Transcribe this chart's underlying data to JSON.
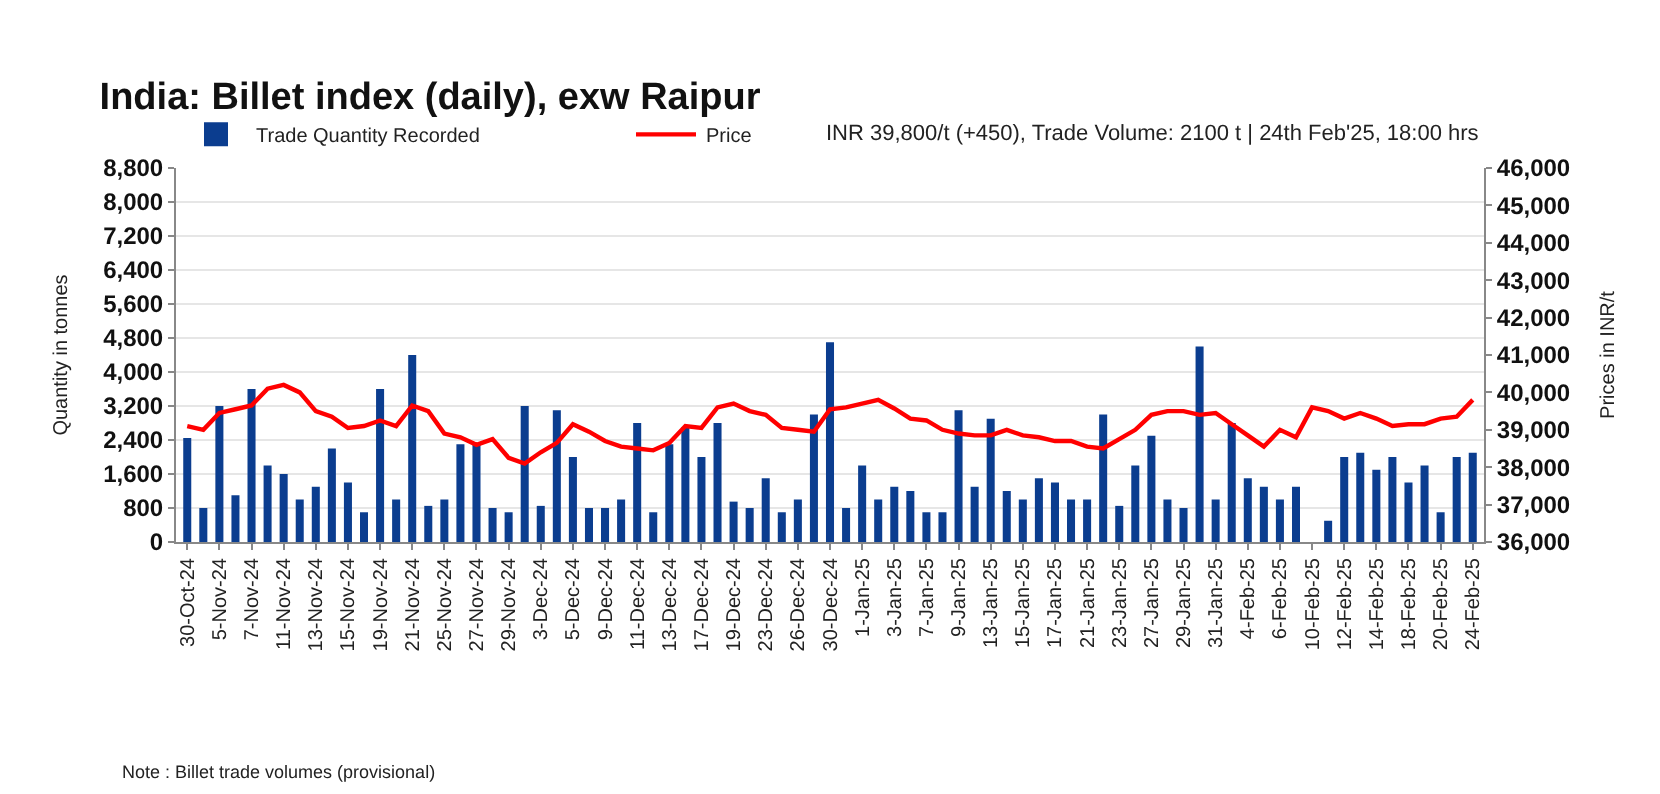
{
  "chart_data": {
    "type": "bar",
    "title": "India: Billet index (daily), exw Raipur",
    "ylabel": "Quantity in tonnes",
    "y2label": "Prices in INR/t",
    "annotations": [
      "INR 39,800/t (+450), Trade Volume: 2100 t | 24th Feb'25, 18:00 hrs",
      "Note : Billet trade volumes (provisional)"
    ],
    "categories": [
      "30-Oct-24",
      null,
      "5-Nov-24",
      null,
      "7-Nov-24",
      null,
      "11-Nov-24",
      null,
      "13-Nov-24",
      null,
      "15-Nov-24",
      null,
      "19-Nov-24",
      null,
      "21-Nov-24",
      null,
      "25-Nov-24",
      null,
      "27-Nov-24",
      null,
      "29-Nov-24",
      null,
      "3-Dec-24",
      null,
      "5-Dec-24",
      null,
      "9-Dec-24",
      null,
      "11-Dec-24",
      null,
      "13-Dec-24",
      null,
      "17-Dec-24",
      null,
      "19-Dec-24",
      null,
      "23-Dec-24",
      null,
      "26-Dec-24",
      null,
      "30-Dec-24",
      null,
      "1-Jan-25",
      null,
      "3-Jan-25",
      null,
      "7-Jan-25",
      null,
      "9-Jan-25",
      null,
      "13-Jan-25",
      null,
      "15-Jan-25",
      null,
      "17-Jan-25",
      null,
      "21-Jan-25",
      null,
      "23-Jan-25",
      null,
      "27-Jan-25",
      null,
      "29-Jan-25",
      null,
      "31-Jan-25",
      null,
      "4-Feb-25",
      null,
      "6-Feb-25",
      null,
      "10-Feb-25",
      null,
      "12-Feb-25",
      null,
      "14-Feb-25",
      null,
      "18-Feb-25",
      null,
      "20-Feb-25",
      null,
      "24-Feb-25"
    ],
    "series": [
      {
        "name": "Trade Quantity Recorded",
        "color": "#0b3d8f",
        "values": [
          2450,
          800,
          3200,
          1100,
          3600,
          1800,
          1600,
          1000,
          1300,
          2200,
          1400,
          700,
          3600,
          1000,
          4400,
          850,
          1000,
          2300,
          2300,
          800,
          700,
          3200,
          850,
          3100,
          2000,
          800,
          800,
          1000,
          2800,
          700,
          2300,
          2700,
          2000,
          2800,
          950,
          800,
          1500,
          700,
          1000,
          3000,
          4700,
          800,
          1800,
          1000,
          1300,
          1200,
          700,
          700,
          3100,
          1300,
          2900,
          1200,
          1000,
          1500,
          1400,
          1000,
          1000,
          3000,
          850,
          1800,
          2500,
          1000,
          800,
          4600,
          1000,
          2800,
          1500,
          1300,
          1000,
          1300,
          null,
          500,
          2000,
          2100,
          1700,
          2000,
          1400,
          1800,
          700,
          2000,
          2100
        ]
      },
      {
        "name": "Price",
        "type": "line",
        "axis": "y2",
        "color": "#ff0000",
        "values": [
          39100,
          39000,
          39450,
          39550,
          39650,
          40100,
          40200,
          40000,
          39500,
          39350,
          39050,
          39100,
          39250,
          39100,
          39650,
          39500,
          38900,
          38800,
          38600,
          38750,
          38250,
          38100,
          38400,
          38650,
          39150,
          38950,
          38700,
          38550,
          38500,
          38450,
          38650,
          39100,
          39050,
          39600,
          39700,
          39500,
          39400,
          39050,
          39000,
          38950,
          39550,
          39600,
          39700,
          39800,
          39570,
          39300,
          39250,
          39000,
          38900,
          38850,
          38850,
          39000,
          38850,
          38800,
          38700,
          38700,
          38550,
          38500,
          38750,
          39000,
          39400,
          39500,
          39500,
          39400,
          39450,
          39150,
          38850,
          38550,
          39000,
          38800,
          39600,
          39500,
          39300,
          39450,
          39300,
          39100,
          39150,
          39150,
          39300,
          39350,
          39800
        ]
      }
    ],
    "ylim": [
      0,
      8800
    ],
    "yticks": [
      0,
      {
        "value": 800,
        "label": "800"
      },
      {
        "value": 1600,
        "label": "1,600"
      },
      {
        "value": 2400,
        "label": "2,400"
      },
      {
        "value": 3200,
        "label": "3,200"
      },
      {
        "value": 4000,
        "label": "4,000"
      },
      {
        "value": 4800,
        "label": "4,800"
      },
      {
        "value": 5600,
        "label": "5,600"
      },
      {
        "value": 6400,
        "label": "6,400"
      },
      {
        "value": 7200,
        "label": "7,200"
      },
      {
        "value": 8000,
        "label": "8,000"
      },
      {
        "value": 8800,
        "label": "8,800"
      }
    ],
    "y2lim": [
      36000,
      46000
    ],
    "y2ticks": [
      {
        "value": 36000,
        "label": "36,000"
      },
      {
        "value": 37000,
        "label": "37,000"
      },
      {
        "value": 38000,
        "label": "38,000"
      },
      {
        "value": 39000,
        "label": "39,000"
      },
      {
        "value": 40000,
        "label": "40,000"
      },
      {
        "value": 41000,
        "label": "41,000"
      },
      {
        "value": 42000,
        "label": "42,000"
      },
      {
        "value": 43000,
        "label": "43,000"
      },
      {
        "value": 44000,
        "label": "44,000"
      },
      {
        "value": 45000,
        "label": "45,000"
      },
      {
        "value": 46000,
        "label": "46,000"
      }
    ],
    "grid": "y",
    "legend": "top left",
    "marker": "none",
    "line_style": "solid"
  }
}
